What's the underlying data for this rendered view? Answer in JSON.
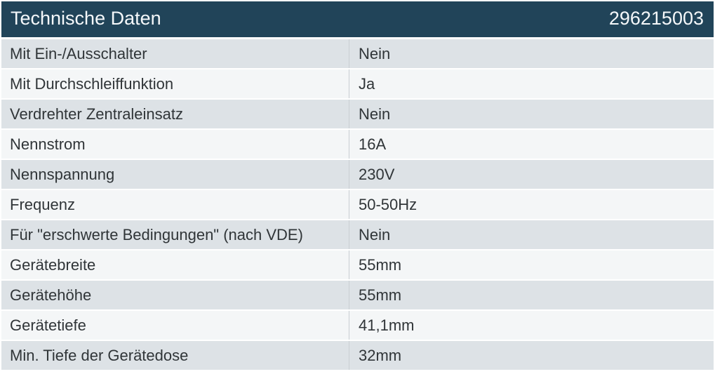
{
  "header": {
    "title": "Technische Daten",
    "article_number": "296215003"
  },
  "colors": {
    "header_bg": "#214459",
    "header_text": "#f5f8fa",
    "row_odd_bg": "#dde2e6",
    "row_even_bg": "#f4f6f7",
    "divider": "#c9ced2",
    "row_text": "#303538"
  },
  "table": {
    "rows": [
      {
        "label": "Mit Ein-/Ausschalter",
        "value": "Nein"
      },
      {
        "label": "Mit Durchschleiffunktion",
        "value": "Ja"
      },
      {
        "label": "Verdrehter Zentraleinsatz",
        "value": "Nein"
      },
      {
        "label": "Nennstrom",
        "value": "16A"
      },
      {
        "label": "Nennspannung",
        "value": "230V"
      },
      {
        "label": "Frequenz",
        "value": "50-50Hz"
      },
      {
        "label": "Für \"erschwerte Bedingungen\" (nach VDE)",
        "value": "Nein"
      },
      {
        "label": "Gerätebreite",
        "value": "55mm"
      },
      {
        "label": "Gerätehöhe",
        "value": "55mm"
      },
      {
        "label": "Gerätetiefe",
        "value": "41,1mm"
      },
      {
        "label": "Min. Tiefe der Gerätedose",
        "value": "32mm"
      }
    ]
  }
}
